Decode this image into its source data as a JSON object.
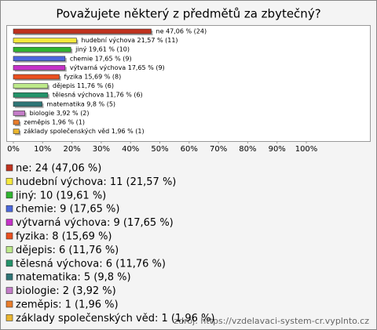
{
  "chart_data": {
    "type": "bar",
    "orientation": "horizontal",
    "title": "Považujete některý z předmětů za zbytečný?",
    "categories": [
      "ne",
      "hudební výchova",
      "jiný",
      "chemie",
      "výtvarná výchova",
      "fyzika",
      "dějepis",
      "tělesná výchova",
      "matematika",
      "biologie",
      "zeměpis",
      "základy společenských věd"
    ],
    "values": [
      47.06,
      21.57,
      19.61,
      17.65,
      17.65,
      15.69,
      11.76,
      11.76,
      9.8,
      3.92,
      1.96,
      1.96
    ],
    "value_labels": [
      "ne 47,06 % (24)",
      "hudební výchova 21,57 % (11)",
      "jiný 19,61 % (10)",
      "chemie 17,65 % (9)",
      "výtvarná výchova 17,65 % (9)",
      "fyzika 15,69 % (8)",
      "dějepis 11,76 % (6)",
      "tělesná výchova 11,76 % (6)",
      "matematika 9,8 % (5)",
      "biologie 3,92 % (2)",
      "zeměpis 1,96 % (1)",
      "základy společenských věd 1,96 % (1)"
    ],
    "colors": [
      "#c0321e",
      "#f7ea3c",
      "#2fb52f",
      "#4a67dc",
      "#c531c8",
      "#ea4f1f",
      "#bde98a",
      "#23946a",
      "#2e7576",
      "#c47cc8",
      "#ea7d2a",
      "#eab52e"
    ],
    "legend": [
      "ne: 24 (47,06 %)",
      "hudební výchova: 11 (21,57 %)",
      "jiný: 10 (19,61 %)",
      "chemie: 9 (17,65 %)",
      "výtvarná výchova: 9 (17,65 %)",
      "fyzika: 8 (15,69 %)",
      "dějepis: 6 (11,76 %)",
      "tělesná výchova: 6 (11,76 %)",
      "matematika: 5 (9,8 %)",
      "biologie: 2 (3,92 %)",
      "zeměpis: 1 (1,96 %)",
      "základy společenských věd: 1 (1,96 %)"
    ],
    "xlim": [
      0,
      100
    ],
    "xticks": [
      {
        "value": 0,
        "label": "0%"
      },
      {
        "value": 10,
        "label": "10%"
      },
      {
        "value": 20,
        "label": "20%"
      },
      {
        "value": 30,
        "label": "30%"
      },
      {
        "value": 40,
        "label": "40%"
      },
      {
        "value": 50,
        "label": "50%"
      },
      {
        "value": 60,
        "label": "60%"
      },
      {
        "value": 70,
        "label": "70%"
      },
      {
        "value": 80,
        "label": "80%"
      },
      {
        "value": 90,
        "label": "90%"
      },
      {
        "value": 100,
        "label": "100%"
      }
    ],
    "source": "zdroj: https://vzdelavaci-system-cr.vyplnto.cz"
  }
}
